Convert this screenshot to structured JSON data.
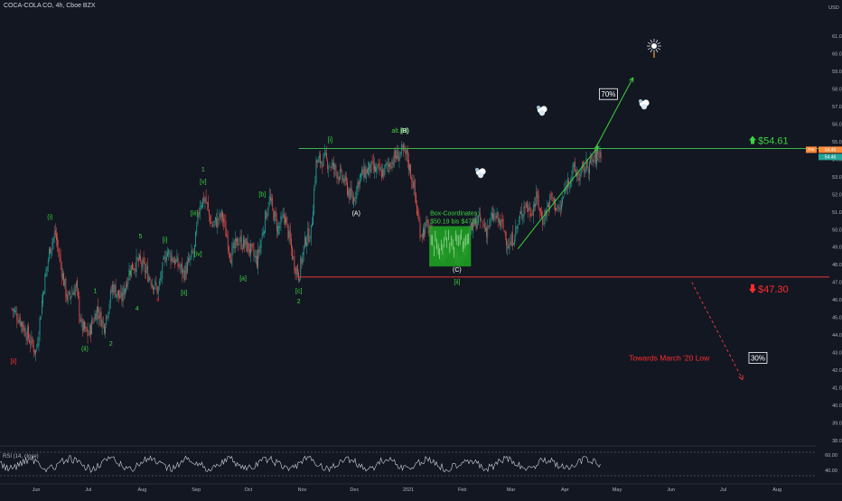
{
  "header": {
    "title": "COCA-COLA CO, 4h, Cboe BZX",
    "currency": "USD"
  },
  "colors": {
    "background": "#131722",
    "up": "#26a69a",
    "down": "#ef5350",
    "green_line": "#3cb34a",
    "red_line": "#e53935",
    "green_text": "#3cd23c",
    "red_text": "#ff2c2c",
    "white": "#ffffff",
    "grid_text": "#b2b5be"
  },
  "chart_data": {
    "type": "candlestick",
    "title": "COCA-COLA CO, 4h, Cboe BZX",
    "x_tick_labels": [
      "Jun",
      "Jul",
      "Aug",
      "Sep",
      "Oct",
      "Nov",
      "Dec",
      "2021",
      "Feb",
      "Mar",
      "Apr",
      "May",
      "Jun",
      "Jul",
      "Aug"
    ],
    "y_tick_labels": [
      "61.00",
      "60.00",
      "59.00",
      "58.00",
      "57.00",
      "56.00",
      "55.00",
      "54.00",
      "53.00",
      "52.00",
      "51.00",
      "50.00",
      "49.00",
      "48.00",
      "47.00",
      "46.00",
      "45.00",
      "44.00",
      "43.00",
      "42.00",
      "41.00",
      "40.00",
      "39.00",
      "38.00"
    ],
    "ylim": [
      37.6,
      62.0
    ],
    "last_price": "54.46",
    "pre_label": "Pre",
    "pre_price": "54.46",
    "close_path": [
      [
        "2020-05-18",
        45.5
      ],
      [
        "2020-05-22",
        45.0
      ],
      [
        "2020-05-27",
        44.0
      ],
      [
        "2020-06-01",
        43.0
      ],
      [
        "2020-06-05",
        46.5
      ],
      [
        "2020-06-09",
        49.0
      ],
      [
        "2020-06-12",
        49.8
      ],
      [
        "2020-06-16",
        47.5
      ],
      [
        "2020-06-19",
        46.0
      ],
      [
        "2020-06-24",
        46.8
      ],
      [
        "2020-06-27",
        44.5
      ],
      [
        "2020-07-01",
        44.0
      ],
      [
        "2020-07-06",
        45.5
      ],
      [
        "2020-07-10",
        44.5
      ],
      [
        "2020-07-15",
        46.8
      ],
      [
        "2020-07-20",
        46.0
      ],
      [
        "2020-07-25",
        47.8
      ],
      [
        "2020-07-30",
        48.2
      ],
      [
        "2020-08-04",
        47.5
      ],
      [
        "2020-08-10",
        46.5
      ],
      [
        "2020-08-15",
        48.8
      ],
      [
        "2020-08-20",
        48.2
      ],
      [
        "2020-08-25",
        47.5
      ],
      [
        "2020-08-31",
        48.8
      ],
      [
        "2020-09-03",
        51.5
      ],
      [
        "2020-09-06",
        51.8
      ],
      [
        "2020-09-10",
        50.2
      ],
      [
        "2020-09-16",
        50.8
      ],
      [
        "2020-09-21",
        48.5
      ],
      [
        "2020-09-25",
        49.4
      ],
      [
        "2020-10-01",
        49.0
      ],
      [
        "2020-10-06",
        48.2
      ],
      [
        "2020-10-13",
        51.8
      ],
      [
        "2020-10-18",
        50.0
      ],
      [
        "2020-10-22",
        50.8
      ],
      [
        "2020-10-27",
        48.2
      ],
      [
        "2020-10-30",
        47.4
      ],
      [
        "2020-11-03",
        49.5
      ],
      [
        "2020-11-06",
        49.8
      ],
      [
        "2020-11-09",
        53.8
      ],
      [
        "2020-11-14",
        54.0
      ],
      [
        "2020-11-19",
        53.5
      ],
      [
        "2020-11-25",
        52.8
      ],
      [
        "2020-11-30",
        51.6
      ],
      [
        "2020-12-04",
        53.0
      ],
      [
        "2020-12-10",
        53.5
      ],
      [
        "2020-12-17",
        53.2
      ],
      [
        "2020-12-23",
        54.0
      ],
      [
        "2020-12-28",
        54.4
      ],
      [
        "2020-12-31",
        54.2
      ],
      [
        "2021-01-04",
        52.5
      ],
      [
        "2021-01-06",
        51.0
      ],
      [
        "2021-01-08",
        49.8
      ],
      [
        "2021-01-12",
        50.2
      ],
      [
        "2021-01-15",
        49.4
      ],
      [
        "2021-01-20",
        48.6
      ],
      [
        "2021-01-25",
        49.0
      ],
      [
        "2021-01-29",
        48.4
      ],
      [
        "2021-02-02",
        49.0
      ],
      [
        "2021-02-05",
        49.8
      ],
      [
        "2021-02-10",
        50.6
      ],
      [
        "2021-02-15",
        50.0
      ],
      [
        "2021-02-19",
        50.8
      ],
      [
        "2021-02-24",
        50.2
      ],
      [
        "2021-02-28",
        49.0
      ],
      [
        "2021-03-04",
        50.0
      ],
      [
        "2021-03-09",
        51.5
      ],
      [
        "2021-03-12",
        51.0
      ],
      [
        "2021-03-16",
        51.8
      ],
      [
        "2021-03-19",
        50.5
      ],
      [
        "2021-03-24",
        51.8
      ],
      [
        "2021-03-29",
        51.0
      ],
      [
        "2021-04-02",
        52.6
      ],
      [
        "2021-04-06",
        53.4
      ],
      [
        "2021-04-09",
        53.0
      ],
      [
        "2021-04-13",
        53.6
      ],
      [
        "2021-04-16",
        53.8
      ],
      [
        "2021-04-20",
        54.3
      ],
      [
        "2021-04-22",
        54.5
      ]
    ],
    "levels": [
      {
        "name": "resistance",
        "value": 54.61,
        "label": "$54.61",
        "from": "2020-10-30",
        "to": "2021-08-31"
      },
      {
        "name": "support",
        "value": 47.3,
        "label": "$47.30",
        "from": "2020-10-29",
        "to": "2021-08-31"
      }
    ],
    "wave_labels": [
      {
        "text": "[ii]",
        "date": "2020-05-19",
        "price": 42.4,
        "color": "red"
      },
      {
        "text": "(i)",
        "date": "2020-06-09",
        "price": 50.6,
        "color": "green"
      },
      {
        "text": "(ii)",
        "date": "2020-06-29",
        "price": 43.1,
        "color": "green"
      },
      {
        "text": "1",
        "date": "2020-07-05",
        "price": 46.4,
        "color": "green"
      },
      {
        "text": "2",
        "date": "2020-07-14",
        "price": 43.4,
        "color": "green"
      },
      {
        "text": "3",
        "date": "2020-07-25",
        "price": 47.4,
        "color": "green"
      },
      {
        "text": "4",
        "date": "2020-07-29",
        "price": 45.4,
        "color": "green"
      },
      {
        "text": "5",
        "date": "2020-07-31",
        "price": 49.5,
        "color": "green"
      },
      {
        "text": "ii",
        "date": "2020-08-10",
        "price": 45.9,
        "color": "red"
      },
      {
        "text": "[i]",
        "date": "2020-08-14",
        "price": 49.3,
        "color": "green"
      },
      {
        "text": "[ii]",
        "date": "2020-08-25",
        "price": 46.3,
        "color": "green"
      },
      {
        "text": "[iii]",
        "date": "2020-08-31",
        "price": 50.8,
        "color": "green"
      },
      {
        "text": "[iv]",
        "date": "2020-09-02",
        "price": 48.5,
        "color": "green"
      },
      {
        "text": "[v]",
        "date": "2020-09-05",
        "price": 52.6,
        "color": "green"
      },
      {
        "text": "1",
        "date": "2020-09-05",
        "price": 53.3,
        "color": "green"
      },
      {
        "text": "[a]",
        "date": "2020-09-28",
        "price": 47.1,
        "color": "green"
      },
      {
        "text": "[b]",
        "date": "2020-10-09",
        "price": 51.9,
        "color": "green"
      },
      {
        "text": "[c]",
        "date": "2020-10-30",
        "price": 46.4,
        "color": "green"
      },
      {
        "text": "2",
        "date": "2020-10-30",
        "price": 45.8,
        "color": "green"
      },
      {
        "text": "[i]",
        "date": "2020-11-17",
        "price": 55.0,
        "color": "green"
      },
      {
        "text": "(A)",
        "date": "2020-12-02",
        "price": 50.8,
        "color": "white"
      },
      {
        "text": "alt.[B]",
        "date": "2020-12-27",
        "price": 55.5,
        "color": "green"
      },
      {
        "text": "(B)",
        "date": "2020-12-30",
        "price": 55.5,
        "color": "white"
      },
      {
        "text": "(C)",
        "date": "2021-01-29",
        "price": 47.6,
        "color": "white"
      },
      {
        "text": "[ii]",
        "date": "2021-01-29",
        "price": 46.9,
        "color": "green"
      }
    ],
    "box": {
      "label": "Box-Coordinates:",
      "range": "$50.19 bis $47.9",
      "from": "2021-01-13",
      "to": "2021-02-06",
      "top": 50.19,
      "bottom": 47.9
    },
    "annotations": [
      {
        "text": "70%",
        "date": "2021-04-26",
        "price": 57.6,
        "color": "white",
        "boxed": true
      },
      {
        "text": "30%",
        "date": "2021-07-21",
        "price": 42.6,
        "color": "white",
        "boxed": true
      },
      {
        "text": "Towards March '20 Low",
        "date": "2021-05-31",
        "price": 42.6,
        "color": "red",
        "boxed": false
      }
    ],
    "arrows": [
      {
        "kind": "solid-up",
        "from": [
          "2021-03-05",
          48.9
        ],
        "to": [
          "2021-04-20",
          54.7
        ]
      },
      {
        "kind": "solid-up",
        "from": [
          "2021-04-19",
          54.7
        ],
        "to": [
          "2021-05-10",
          58.6
        ]
      },
      {
        "kind": "dashed-down",
        "from": [
          "2021-06-13",
          47.0
        ],
        "to": [
          "2021-07-12",
          41.5
        ]
      }
    ],
    "rsi": {
      "label": "RSI (14, close)",
      "tick_labels": [
        "60.00",
        "40.00"
      ]
    }
  }
}
